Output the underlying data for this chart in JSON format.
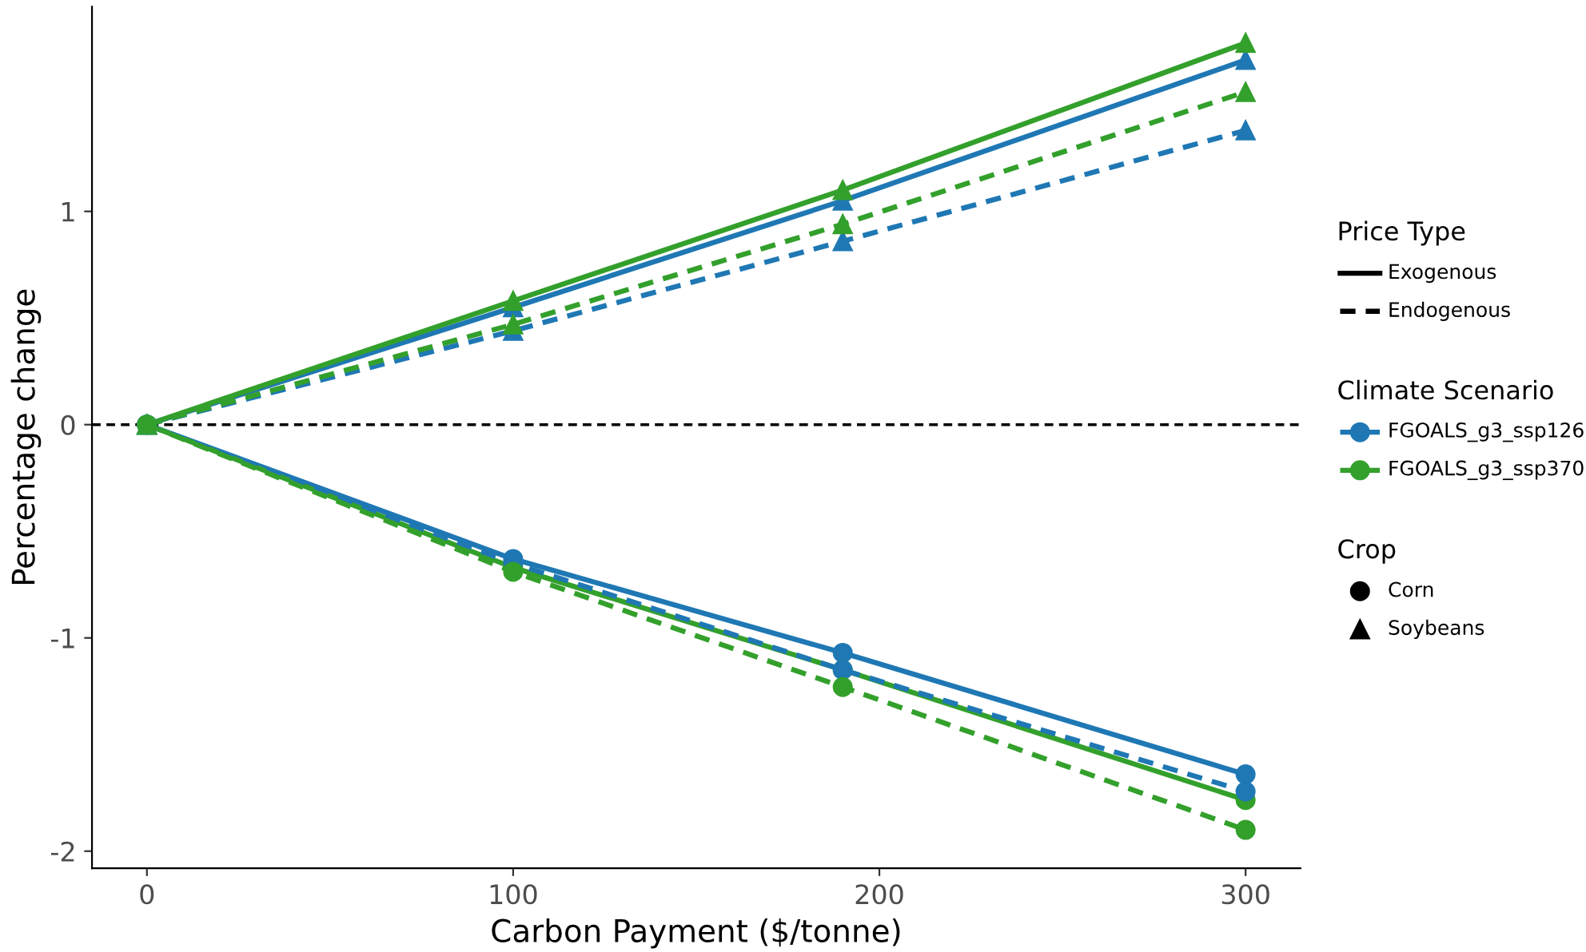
{
  "chart_data": {
    "type": "line",
    "xlabel": "Carbon Payment ($/tonne)",
    "ylabel": "Percentage change",
    "x": [
      0,
      100,
      190,
      300
    ],
    "xlim": [
      -15,
      315
    ],
    "xticks": [
      0,
      100,
      200,
      300
    ],
    "ylim": [
      -2.08,
      1.96
    ],
    "yticks": [
      -2,
      -1,
      0,
      1
    ],
    "grid": false,
    "annotations": [
      "Price Type",
      "Exogenous",
      "Endogenous",
      "Climate Scenario",
      "FGOALS_g3_ssp126",
      "FGOALS_g3_ssp370",
      "Crop",
      "Corn",
      "Soybeans"
    ],
    "ref_lines": [
      {
        "axis": "y",
        "value": 0,
        "color": "#000000",
        "line_style": "dashed"
      }
    ],
    "series": [
      {
        "color": "#1f78b4",
        "marker": "triangle",
        "line_style": "solid",
        "values": [
          0,
          0.55,
          1.05,
          1.71
        ]
      },
      {
        "color": "#33a02c",
        "marker": "triangle",
        "line_style": "solid",
        "values": [
          0,
          0.58,
          1.1,
          1.79
        ]
      },
      {
        "color": "#1f78b4",
        "marker": "triangle",
        "line_style": "dashed",
        "values": [
          0,
          0.44,
          0.86,
          1.38
        ]
      },
      {
        "color": "#33a02c",
        "marker": "triangle",
        "line_style": "dashed",
        "values": [
          0,
          0.47,
          0.94,
          1.56
        ]
      },
      {
        "color": "#1f78b4",
        "marker": "circle",
        "line_style": "solid",
        "values": [
          0,
          -0.63,
          -1.07,
          -1.64
        ]
      },
      {
        "color": "#33a02c",
        "marker": "circle",
        "line_style": "solid",
        "values": [
          0,
          -0.67,
          -1.15,
          -1.76
        ]
      },
      {
        "color": "#1f78b4",
        "marker": "circle",
        "line_style": "dashed",
        "values": [
          0,
          -0.65,
          -1.15,
          -1.72
        ]
      },
      {
        "color": "#33a02c",
        "marker": "circle",
        "line_style": "dashed",
        "values": [
          0,
          -0.69,
          -1.23,
          -1.9
        ]
      }
    ]
  }
}
